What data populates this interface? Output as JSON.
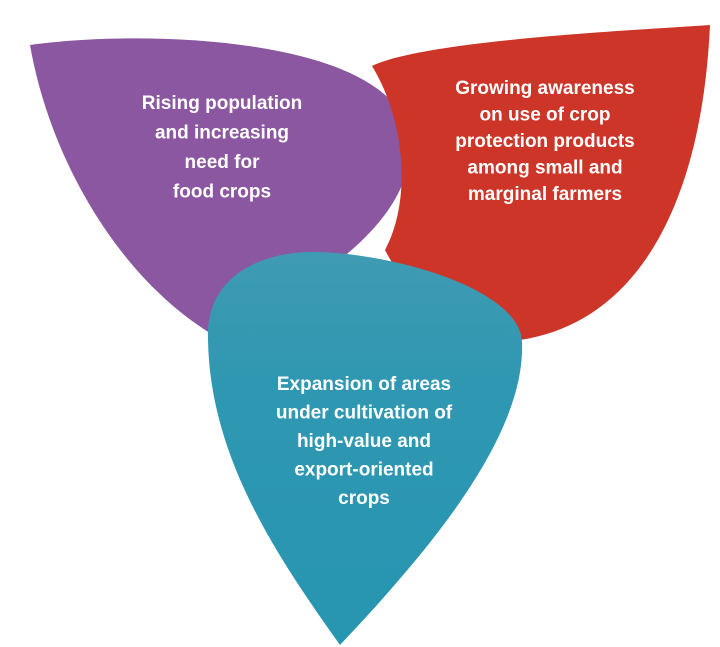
{
  "petals": [
    {
      "lines": [
        "Rising population",
        "and increasing",
        "need for",
        "food crops"
      ]
    },
    {
      "lines": [
        "Growing awareness",
        "on use of crop",
        "protection products",
        "among small and",
        "marginal farmers"
      ]
    },
    {
      "lines": [
        "Expansion of areas",
        "under cultivation of",
        "high-value and",
        "export-oriented",
        "crops"
      ]
    }
  ]
}
